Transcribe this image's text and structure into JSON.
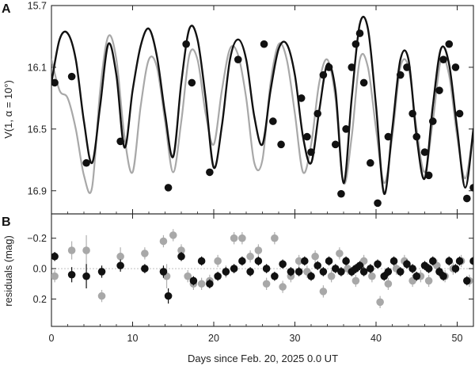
{
  "colors": {
    "model_black": "#111111",
    "model_gray": "#a8a8a8",
    "point_black": "#111111",
    "point_gray": "#a8a8a8",
    "error_bar_gray": "#b0b0b0"
  },
  "chart_data": [
    {
      "panel": "A",
      "type": "line",
      "ylabel": "V(1, α = 10°)",
      "xlim": [
        0,
        52
      ],
      "ylim": [
        15.7,
        17.05
      ],
      "y_inverted": true,
      "x_ticks": [
        0,
        10,
        20,
        30,
        40,
        50
      ],
      "y_ticks": [
        15.7,
        16.1,
        16.5,
        16.9
      ],
      "y_tick_labels": [
        "15.7",
        "16.1",
        "16.5",
        "16.9"
      ],
      "grid": false,
      "series": [
        {
          "style": "line",
          "color": "black",
          "x": [
            0,
            1,
            2,
            3,
            4,
            5,
            6,
            7,
            8,
            9,
            10,
            11,
            12,
            13,
            14,
            15,
            16,
            17,
            18,
            19,
            20,
            21,
            22,
            23,
            24,
            25,
            26,
            27,
            28,
            29,
            30,
            31,
            32,
            33,
            34,
            35,
            36,
            37,
            38,
            39,
            40,
            41,
            42,
            43,
            44,
            45,
            46,
            47,
            48,
            49,
            50,
            51,
            52
          ],
          "y": [
            16.2,
            15.92,
            15.88,
            16.05,
            16.45,
            16.72,
            16.35,
            15.95,
            16.15,
            16.62,
            16.25,
            15.96,
            15.85,
            16.03,
            16.4,
            16.68,
            16.2,
            15.85,
            15.92,
            16.3,
            16.75,
            16.48,
            16.05,
            15.92,
            16.05,
            16.42,
            16.6,
            16.25,
            15.98,
            15.95,
            16.15,
            16.55,
            16.72,
            16.38,
            16.08,
            16.25,
            16.85,
            16.3,
            15.82,
            15.85,
            16.35,
            16.92,
            16.5,
            16.05,
            16.05,
            16.55,
            16.82,
            16.35,
            15.98,
            16.08,
            16.5,
            16.88,
            16.5
          ]
        },
        {
          "style": "line",
          "color": "gray",
          "x": [
            0,
            1,
            2,
            3,
            4,
            5,
            6,
            7,
            8,
            9,
            10,
            11,
            12,
            13,
            14,
            15,
            16,
            17,
            18,
            19,
            20,
            21,
            22,
            23,
            24,
            25,
            26,
            27,
            28,
            29,
            30,
            31,
            32,
            33,
            34,
            35,
            36,
            37,
            38,
            39,
            40,
            41,
            42,
            43,
            44,
            45,
            46,
            47,
            48,
            49,
            50,
            51,
            52
          ],
          "y": [
            16.05,
            16.25,
            16.3,
            16.5,
            16.8,
            16.88,
            16.25,
            15.9,
            16.05,
            16.55,
            16.78,
            16.35,
            16.05,
            16.1,
            16.45,
            16.78,
            16.45,
            16.02,
            16.05,
            16.4,
            16.6,
            16.25,
            15.98,
            16.02,
            16.3,
            16.72,
            16.7,
            16.2,
            15.95,
            16.05,
            16.4,
            16.78,
            16.6,
            16.2,
            16.05,
            16.3,
            16.85,
            16.55,
            16.05,
            16.1,
            16.5,
            16.85,
            16.55,
            16.1,
            16.1,
            16.5,
            16.78,
            16.45,
            16.05,
            16.15,
            16.55,
            16.82,
            16.5
          ]
        },
        {
          "style": "points",
          "color": "black",
          "x": [
            0.4,
            2.5,
            4.3,
            8.5,
            14.4,
            16.6,
            17.3,
            19.5,
            23.0,
            26.2,
            27.3,
            28.3,
            30.8,
            31.5,
            32.0,
            32.8,
            33.5,
            34.2,
            35.0,
            35.7,
            36.3,
            37.0,
            37.5,
            38.0,
            38.5,
            39.3,
            40.2,
            41.5,
            43.0,
            43.8,
            44.5,
            45.0,
            46.0,
            46.5,
            47.0,
            47.8,
            48.3,
            49.0,
            49.8,
            50.3,
            51.2,
            52.0
          ],
          "y": [
            16.2,
            16.16,
            16.72,
            16.58,
            16.88,
            15.95,
            16.2,
            16.78,
            16.05,
            15.95,
            16.45,
            16.6,
            16.3,
            16.55,
            16.65,
            16.4,
            16.15,
            16.1,
            16.6,
            16.92,
            16.5,
            16.1,
            15.95,
            15.88,
            16.2,
            16.72,
            16.98,
            16.55,
            16.15,
            16.1,
            16.4,
            16.55,
            16.65,
            16.8,
            16.45,
            16.25,
            16.05,
            15.95,
            16.1,
            16.4,
            16.95,
            16.88
          ]
        }
      ]
    },
    {
      "panel": "B",
      "type": "scatter",
      "ylabel": "residuals (mag)",
      "xlabel": "Days since Feb. 20, 2025 0.0 UT",
      "xlim": [
        0,
        52
      ],
      "ylim": [
        0.38,
        -0.36
      ],
      "y_inverted": true,
      "x_ticks": [
        0,
        10,
        20,
        30,
        40,
        50
      ],
      "x_tick_labels": [
        "0",
        "10",
        "20",
        "30",
        "40",
        "50"
      ],
      "y_ticks": [
        -0.2,
        0.0,
        0.2
      ],
      "y_tick_labels": [
        "−0.2",
        "0.0",
        "0.2"
      ],
      "grid": false,
      "series": [
        {
          "style": "points",
          "color": "gray",
          "x": [
            0.4,
            2.5,
            4.3,
            6.2,
            8.5,
            11.5,
            13.8,
            14.2,
            15.0,
            16.0,
            16.8,
            17.5,
            18.5,
            19.5,
            20.5,
            21.5,
            22.5,
            23.5,
            24.5,
            25.5,
            26.5,
            27.5,
            28.5,
            29.5,
            30.5,
            31.5,
            32.5,
            33.5,
            34.5,
            35.5,
            36.5,
            37.5,
            38.5,
            39.5,
            40.5,
            41.5,
            42.5,
            43.5,
            44.5,
            45.5,
            46.5,
            47.5,
            48.5,
            49.5,
            50.5,
            51.5
          ],
          "y": [
            0.05,
            -0.12,
            -0.12,
            0.18,
            -0.08,
            -0.1,
            -0.18,
            0.05,
            -0.22,
            -0.12,
            0.05,
            0.1,
            0.1,
            0.08,
            -0.05,
            0.02,
            -0.2,
            -0.2,
            -0.08,
            -0.12,
            0.1,
            -0.2,
            0.12,
            0.05,
            -0.05,
            0.02,
            -0.08,
            0.15,
            0.05,
            -0.1,
            0.0,
            0.08,
            -0.05,
            0.05,
            0.22,
            0.1,
            0.0,
            -0.05,
            0.08,
            0.05,
            0.08,
            -0.02,
            0.05,
            0.0,
            -0.05,
            0.08
          ],
          "error_bars": [
            0.04,
            0.06,
            0.1,
            0.04,
            0.06,
            0.04,
            0.04,
            0.08,
            0.04,
            0.04,
            0.04,
            0.04,
            0.04,
            0.04,
            0.04,
            0.04,
            0.04,
            0.04,
            0.04,
            0.04,
            0.04,
            0.04,
            0.04,
            0.04,
            0.04,
            0.04,
            0.04,
            0.04,
            0.04,
            0.04,
            0.04,
            0.04,
            0.04,
            0.04,
            0.04,
            0.04,
            0.04,
            0.04,
            0.04,
            0.04,
            0.04,
            0.04,
            0.04,
            0.04,
            0.04,
            0.04
          ]
        },
        {
          "style": "points",
          "color": "black",
          "x": [
            0.4,
            2.5,
            4.3,
            6.2,
            8.5,
            11.5,
            13.8,
            14.4,
            16.0,
            17.5,
            18.5,
            19.5,
            20.5,
            21.5,
            22.5,
            23.5,
            24.5,
            25.5,
            26.5,
            27.5,
            28.5,
            29.5,
            30.5,
            31.2,
            32.0,
            32.8,
            33.5,
            34.2,
            35.0,
            35.7,
            36.3,
            37.0,
            37.5,
            38.0,
            38.5,
            39.3,
            40.2,
            41.0,
            41.5,
            42.2,
            43.0,
            43.8,
            44.5,
            45.0,
            46.0,
            46.5,
            47.0,
            47.8,
            48.3,
            49.0,
            49.8,
            50.3,
            51.2,
            52.0
          ],
          "y": [
            -0.08,
            0.04,
            0.05,
            0.02,
            -0.02,
            0.0,
            0.02,
            0.18,
            -0.08,
            0.08,
            -0.05,
            0.1,
            0.05,
            0.02,
            0.0,
            -0.05,
            0.02,
            -0.05,
            0.0,
            0.05,
            -0.03,
            0.02,
            0.02,
            -0.05,
            0.05,
            -0.02,
            0.02,
            -0.05,
            0.0,
            0.02,
            -0.05,
            0.02,
            0.0,
            -0.02,
            0.02,
            0.0,
            -0.03,
            0.05,
            0.02,
            -0.05,
            0.02,
            -0.03,
            0.0,
            0.05,
            -0.02,
            0.0,
            -0.05,
            0.02,
            0.05,
            -0.05,
            0.0,
            -0.05,
            0.08,
            -0.05
          ],
          "error_bars": [
            0.03,
            0.05,
            0.08,
            0.04,
            0.04,
            0.03,
            0.04,
            0.05,
            0.03,
            0.03,
            0.03,
            0.03,
            0.03,
            0.03,
            0.03,
            0.03,
            0.03,
            0.03,
            0.03,
            0.03,
            0.03,
            0.03,
            0.03,
            0.03,
            0.03,
            0.03,
            0.03,
            0.03,
            0.03,
            0.03,
            0.03,
            0.03,
            0.03,
            0.03,
            0.03,
            0.03,
            0.03,
            0.03,
            0.03,
            0.03,
            0.03,
            0.03,
            0.03,
            0.03,
            0.03,
            0.03,
            0.03,
            0.03,
            0.03,
            0.03,
            0.03,
            0.03,
            0.03,
            0.03
          ]
        }
      ]
    }
  ]
}
